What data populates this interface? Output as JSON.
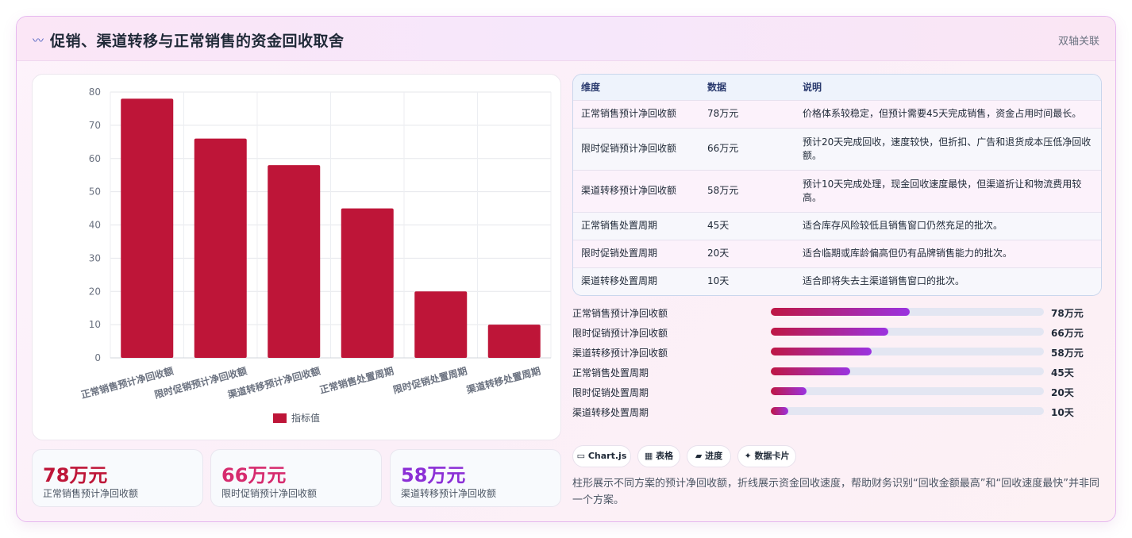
{
  "header": {
    "icon": "wave-icon",
    "title": "促销、渠道转移与正常销售的资金回收取舍",
    "tag": "双轴关联"
  },
  "chart_data": {
    "type": "bar",
    "categories": [
      "正常销售预计净回收额",
      "限时促销预计净回收额",
      "渠道转移预计净回收额",
      "正常销售处置周期",
      "限时促销处置周期",
      "渠道转移处置周期"
    ],
    "series": [
      {
        "name": "指标值",
        "values": [
          78,
          66,
          58,
          45,
          20,
          10
        ],
        "color": "#be1538"
      }
    ],
    "yticks": [
      0,
      10,
      20,
      30,
      40,
      50,
      60,
      70,
      80
    ],
    "ylim": [
      0,
      80
    ],
    "grid": true,
    "legend": "bottom"
  },
  "stats": [
    {
      "value": "78万元",
      "label": "正常销售预计净回收额",
      "color": "#be1538"
    },
    {
      "value": "66万元",
      "label": "限时促销预计净回收额",
      "color": "#d62b6e"
    },
    {
      "value": "58万元",
      "label": "渠道转移预计净回收额",
      "color": "#8b2fd6"
    }
  ],
  "table": {
    "headers": [
      "维度",
      "数据",
      "说明"
    ],
    "rows": [
      [
        "正常销售预计净回收额",
        "78万元",
        "价格体系较稳定，但预计需要45天完成销售，资金占用时间最长。"
      ],
      [
        "限时促销预计净回收额",
        "66万元",
        "预计20天完成回收，速度较快，但折扣、广告和退货成本压低净回收额。"
      ],
      [
        "渠道转移预计净回收额",
        "58万元",
        "预计10天完成处理，现金回收速度最快，但渠道折让和物流费用较高。"
      ],
      [
        "正常销售处置周期",
        "45天",
        "适合库存风险较低且销售窗口仍然充足的批次。"
      ],
      [
        "限时促销处置周期",
        "20天",
        "适合临期或库龄偏高但仍有品牌销售能力的批次。"
      ],
      [
        "渠道转移处置周期",
        "10天",
        "适合即将失去主渠道销售窗口的批次。"
      ]
    ]
  },
  "progress": [
    {
      "label": "正常销售预计净回收额",
      "value_text": "78万元",
      "fraction": 0.51
    },
    {
      "label": "限时促销预计净回收额",
      "value_text": "66万元",
      "fraction": 0.43
    },
    {
      "label": "渠道转移预计净回收额",
      "value_text": "58万元",
      "fraction": 0.37
    },
    {
      "label": "正常销售处置周期",
      "value_text": "45天",
      "fraction": 0.29
    },
    {
      "label": "限时促销处置周期",
      "value_text": "20天",
      "fraction": 0.13
    },
    {
      "label": "渠道转移处置周期",
      "value_text": "10天",
      "fraction": 0.065
    }
  ],
  "chips": [
    {
      "icon": "window-icon",
      "label": "Chart.js"
    },
    {
      "icon": "table-icon",
      "label": "表格"
    },
    {
      "icon": "folder-icon",
      "label": "进度"
    },
    {
      "icon": "sparkle-icon",
      "label": "数据卡片"
    }
  ],
  "note": "柱形展示不同方案的预计净回收额，折线展示资金回收速度，帮助财务识别“回收金额最高”和“回收速度最快”并非同一个方案。"
}
